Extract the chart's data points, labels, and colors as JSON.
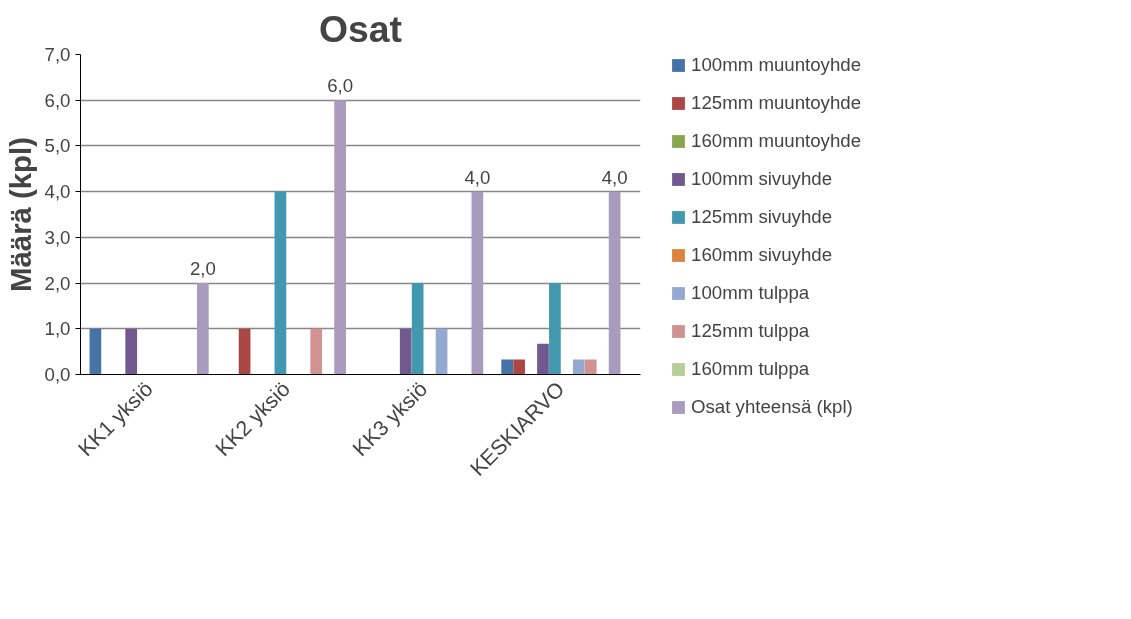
{
  "chart_data": {
    "type": "bar",
    "title": "Osat",
    "ylabel": "Määrä (kpl)",
    "categories": [
      "KK1 yksiö",
      "KK2 yksiö",
      "KK3 yksiö",
      "KESKIARVO"
    ],
    "series": [
      {
        "name": "100mm muuntoyhde",
        "color": "#4572a7",
        "values": [
          1,
          0,
          0,
          0.33
        ]
      },
      {
        "name": "125mm muuntoyhde",
        "color": "#aa4643",
        "values": [
          0,
          1,
          0,
          0.33
        ]
      },
      {
        "name": "160mm muuntoyhde",
        "color": "#89a54e",
        "values": [
          0,
          0,
          0,
          0
        ]
      },
      {
        "name": "100mm sivuyhde",
        "color": "#71588f",
        "values": [
          1,
          0,
          1,
          0.67
        ]
      },
      {
        "name": "125mm sivuyhde",
        "color": "#4198af",
        "values": [
          0,
          4,
          2,
          2
        ]
      },
      {
        "name": "160mm sivuyhde",
        "color": "#db843d",
        "values": [
          0,
          0,
          0,
          0
        ]
      },
      {
        "name": "100mm tulppa",
        "color": "#93a9cf",
        "values": [
          0,
          0,
          1,
          0.33
        ]
      },
      {
        "name": "125mm tulppa",
        "color": "#d19392",
        "values": [
          0,
          1,
          0,
          0.33
        ]
      },
      {
        "name": "160mm tulppa",
        "color": "#b9cd96",
        "values": [
          0,
          0,
          0,
          0
        ]
      },
      {
        "name": "Osat yhteensä (kpl)",
        "color": "#a99bbd",
        "values": [
          2,
          6,
          4,
          4
        ],
        "value_labels": [
          "2,0",
          "6,0",
          "4,0",
          "4,0"
        ]
      }
    ],
    "ylim": [
      0,
      7
    ],
    "yticks": [
      {
        "value": 0,
        "label": "0,0"
      },
      {
        "value": 1,
        "label": "1,0"
      },
      {
        "value": 2,
        "label": "2,0"
      },
      {
        "value": 3,
        "label": "3,0"
      },
      {
        "value": 4,
        "label": "4,0"
      },
      {
        "value": 5,
        "label": "5,0"
      },
      {
        "value": 6,
        "label": "6,0"
      },
      {
        "value": 7,
        "label": "7,0"
      }
    ],
    "grid": "y",
    "legend": "right"
  }
}
